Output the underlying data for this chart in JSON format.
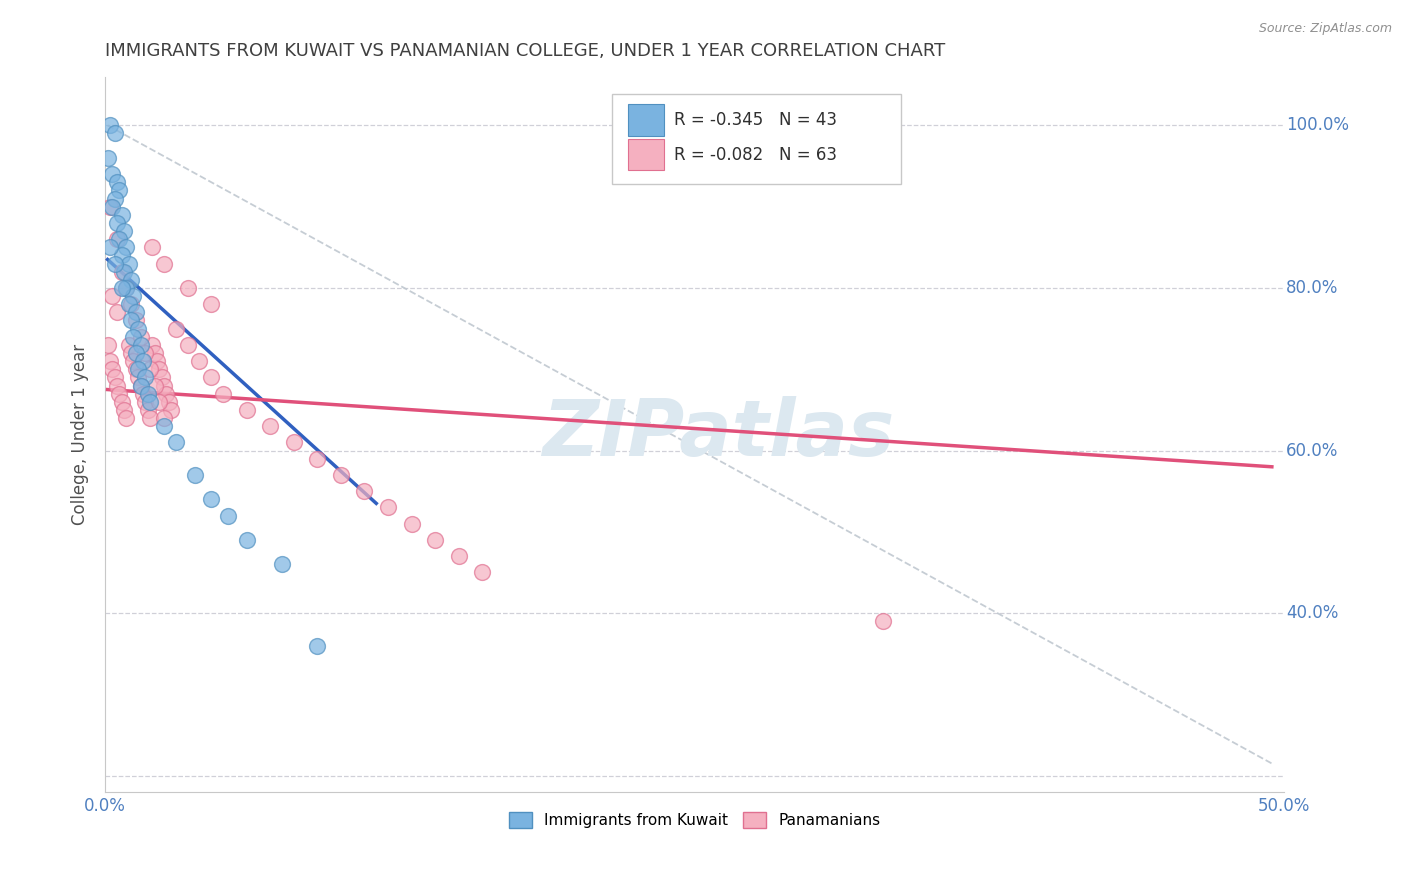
{
  "title": "IMMIGRANTS FROM KUWAIT VS PANAMANIAN COLLEGE, UNDER 1 YEAR CORRELATION CHART",
  "source": "Source: ZipAtlas.com",
  "ylabel": "College, Under 1 year",
  "xlim": [
    0.0,
    0.5
  ],
  "ylim": [
    0.18,
    1.06
  ],
  "xticks": [
    0.0,
    0.1,
    0.2,
    0.3,
    0.4,
    0.5
  ],
  "xtick_labels": [
    "0.0%",
    "",
    "",
    "",
    "",
    "50.0%"
  ],
  "yticks": [
    0.2,
    0.4,
    0.6,
    0.8,
    1.0
  ],
  "ytick_labels_right": [
    "",
    "40.0%",
    "60.0%",
    "80.0%",
    "100.0%"
  ],
  "legend_entries": [
    "Immigrants from Kuwait",
    "Panamanians"
  ],
  "stat_box": {
    "blue_R": "-0.345",
    "blue_N": "43",
    "pink_R": "-0.082",
    "pink_N": "63"
  },
  "blue_color": "#7ab3e0",
  "pink_color": "#f5b0c0",
  "blue_edge_color": "#5090c0",
  "pink_edge_color": "#e07090",
  "blue_line_color": "#3060c0",
  "pink_line_color": "#e0507a",
  "dashed_line_color": "#c0c8d0",
  "background_color": "#ffffff",
  "grid_color": "#d0d0d8",
  "title_color": "#404040",
  "axis_label_color": "#5080c0",
  "ylabel_color": "#505050",
  "watermark_color": "#dce8f0",
  "watermark": "ZIPatlas",
  "blue_scatter_x": [
    0.002,
    0.004,
    0.001,
    0.003,
    0.005,
    0.006,
    0.004,
    0.003,
    0.007,
    0.005,
    0.008,
    0.006,
    0.009,
    0.007,
    0.01,
    0.008,
    0.011,
    0.009,
    0.012,
    0.01,
    0.013,
    0.011,
    0.014,
    0.012,
    0.015,
    0.013,
    0.016,
    0.014,
    0.017,
    0.015,
    0.018,
    0.002,
    0.004,
    0.007,
    0.019,
    0.025,
    0.03,
    0.038,
    0.045,
    0.052,
    0.06,
    0.075,
    0.09
  ],
  "blue_scatter_y": [
    1.0,
    0.99,
    0.96,
    0.94,
    0.93,
    0.92,
    0.91,
    0.9,
    0.89,
    0.88,
    0.87,
    0.86,
    0.85,
    0.84,
    0.83,
    0.82,
    0.81,
    0.8,
    0.79,
    0.78,
    0.77,
    0.76,
    0.75,
    0.74,
    0.73,
    0.72,
    0.71,
    0.7,
    0.69,
    0.68,
    0.67,
    0.85,
    0.83,
    0.8,
    0.66,
    0.63,
    0.61,
    0.57,
    0.54,
    0.52,
    0.49,
    0.46,
    0.36
  ],
  "pink_scatter_x": [
    0.001,
    0.002,
    0.003,
    0.004,
    0.005,
    0.006,
    0.007,
    0.008,
    0.009,
    0.01,
    0.011,
    0.012,
    0.013,
    0.014,
    0.015,
    0.016,
    0.017,
    0.018,
    0.019,
    0.02,
    0.021,
    0.022,
    0.023,
    0.024,
    0.025,
    0.026,
    0.027,
    0.028,
    0.003,
    0.005,
    0.007,
    0.009,
    0.011,
    0.013,
    0.015,
    0.017,
    0.019,
    0.021,
    0.023,
    0.025,
    0.03,
    0.035,
    0.04,
    0.045,
    0.05,
    0.06,
    0.07,
    0.08,
    0.09,
    0.1,
    0.11,
    0.12,
    0.13,
    0.14,
    0.15,
    0.16,
    0.02,
    0.025,
    0.035,
    0.045,
    0.33,
    0.002,
    0.005
  ],
  "pink_scatter_y": [
    0.73,
    0.71,
    0.7,
    0.69,
    0.68,
    0.67,
    0.66,
    0.65,
    0.64,
    0.73,
    0.72,
    0.71,
    0.7,
    0.69,
    0.68,
    0.67,
    0.66,
    0.65,
    0.64,
    0.73,
    0.72,
    0.71,
    0.7,
    0.69,
    0.68,
    0.67,
    0.66,
    0.65,
    0.79,
    0.77,
    0.82,
    0.8,
    0.78,
    0.76,
    0.74,
    0.72,
    0.7,
    0.68,
    0.66,
    0.64,
    0.75,
    0.73,
    0.71,
    0.69,
    0.67,
    0.65,
    0.63,
    0.61,
    0.59,
    0.57,
    0.55,
    0.53,
    0.51,
    0.49,
    0.47,
    0.45,
    0.85,
    0.83,
    0.8,
    0.78,
    0.39,
    0.9,
    0.86
  ],
  "blue_line_x": [
    0.001,
    0.115
  ],
  "blue_line_y": [
    0.835,
    0.535
  ],
  "pink_line_x": [
    0.001,
    0.495
  ],
  "pink_line_y": [
    0.675,
    0.58
  ],
  "diag_line_x": [
    0.001,
    0.495
  ],
  "diag_line_y": [
    1.0,
    0.215
  ]
}
